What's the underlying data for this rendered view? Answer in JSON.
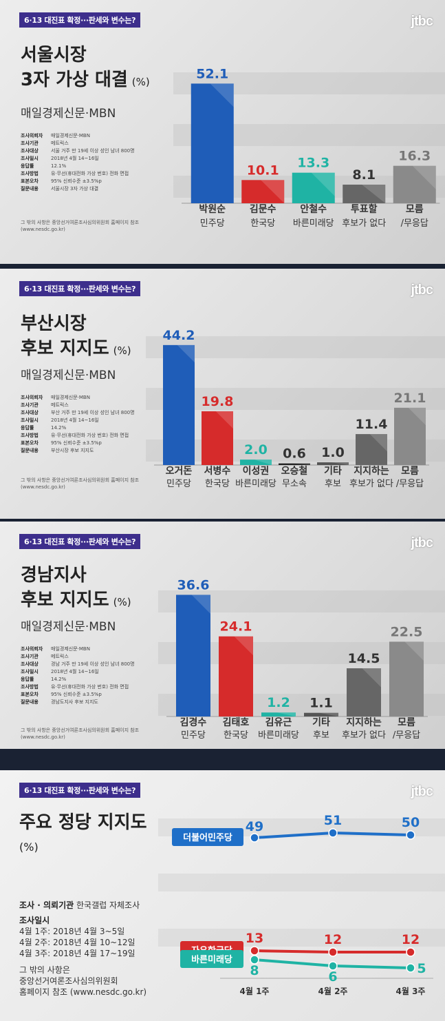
{
  "panels": [
    {
      "tag": "6·13 대진표 확정···판세와 변수는?",
      "logo": "jtbc",
      "title_line1": "서울시장",
      "title_line2": "3자 가상 대결",
      "unit": "(%)",
      "source": "매일경제신문·MBN",
      "meta": [
        {
          "k": "조사의뢰자",
          "v": "매일경제신문·MBN"
        },
        {
          "k": "조사기관",
          "v": "메트릭스"
        },
        {
          "k": "조사대상",
          "v": "서울 거주 만 19세 이상 성인 남녀 800명"
        },
        {
          "k": "조사일시",
          "v": "2018년 4월 14~16일"
        },
        {
          "k": "응답률",
          "v": "12.1%"
        },
        {
          "k": "조사방법",
          "v": "유·무선(휴대전화 가상 번호) 전화 면접"
        },
        {
          "k": "표본오차",
          "v": "95% 신뢰수준 ±3.5%p"
        },
        {
          "k": "질문내용",
          "v": "서울시장 3자 가상 대결"
        }
      ],
      "footnote": "그 밖의 사항은 중앙선거여론조사심의위원회 홈페이지 참조 (www.nesdc.go.kr)"
    },
    {
      "tag": "6·13 대진표 확정···판세와 변수는?",
      "logo": "jtbc",
      "title_line1": "부산시장",
      "title_line2": "후보 지지도",
      "unit": "(%)",
      "source": "매일경제신문·MBN",
      "meta": [
        {
          "k": "조사의뢰자",
          "v": "매일경제신문·MBN"
        },
        {
          "k": "조사기관",
          "v": "메트릭스"
        },
        {
          "k": "조사대상",
          "v": "부산 거주 만 19세 이상 성인 남녀 800명"
        },
        {
          "k": "조사일시",
          "v": "2018년 4월 14~16일"
        },
        {
          "k": "응답률",
          "v": "14.2%"
        },
        {
          "k": "조사방법",
          "v": "유·무선(휴대전화 가상 번호) 전화 면접"
        },
        {
          "k": "표본오차",
          "v": "95% 신뢰수준 ±3.5%p"
        },
        {
          "k": "질문내용",
          "v": "부산시장 후보 지지도"
        }
      ],
      "footnote": "그 밖의 사항은 중앙선거여론조사심의위원회 홈페이지 참조 (www.nesdc.go.kr)"
    },
    {
      "tag": "6·13 대진표 확정···판세와 변수는?",
      "logo": "jtbc",
      "title_line1": "경남지사",
      "title_line2": "후보 지지도",
      "unit": "(%)",
      "source": "매일경제신문·MBN",
      "meta": [
        {
          "k": "조사의뢰자",
          "v": "매일경제신문·MBN"
        },
        {
          "k": "조사기관",
          "v": "메트릭스"
        },
        {
          "k": "조사대상",
          "v": "경남 거주 만 19세 이상 성인 남녀 800명"
        },
        {
          "k": "조사일시",
          "v": "2018년 4월 14~16일"
        },
        {
          "k": "응답률",
          "v": "14.2%"
        },
        {
          "k": "조사방법",
          "v": "유·무선(휴대전화 가상 번호) 전화 면접"
        },
        {
          "k": "표본오차",
          "v": "95% 신뢰수준 ±3.5%p"
        },
        {
          "k": "질문내용",
          "v": "경남도지사 후보 지지도"
        }
      ],
      "footnote": "그 밖의 사항은 중앙선거여론조사심의위원회 홈페이지 참조 (www.nesdc.go.kr)"
    },
    {
      "tag": "6·13 대진표 확정···판세와 변수는?",
      "logo": "jtbc",
      "title_line1": "주요 정당 지지도",
      "unit": "(%)",
      "agency_label": "조사 · 의뢰기관",
      "agency_value": "한국갤럽 자체조사",
      "dates_label": "조사일시",
      "dates": [
        "4월 1주: 2018년 4월 3~5일",
        "4월 2주: 2018년 4월 10~12일",
        "4월 3주: 2018년 4월 17~19일"
      ],
      "footnote": [
        "그 밖의 사항은",
        "중앙선거여론조사심의위원회",
        "홈페이지 참조 (www.nesdc.go.kr)"
      ]
    }
  ],
  "chart_data": [
    {
      "type": "bar",
      "unit": "%",
      "categories": [
        {
          "line1": "박원순",
          "line2": "민주당"
        },
        {
          "line1": "김문수",
          "line2": "한국당"
        },
        {
          "line1": "안철수",
          "line2": "바른미래당"
        },
        {
          "line1": "투표할",
          "line2": "후보가 없다"
        },
        {
          "line1": "모름",
          "line2": "/무응답"
        }
      ],
      "values": [
        52.1,
        10.1,
        13.3,
        8.1,
        16.3
      ],
      "value_labels": [
        "52.1",
        "10.1",
        "13.3",
        "8.1",
        "16.3"
      ],
      "colors": [
        "#1f5db8",
        "#d62b2b",
        "#1fb3a4",
        "#666666",
        "#8a8a8a"
      ],
      "ylim": [
        0,
        60
      ]
    },
    {
      "type": "bar",
      "unit": "%",
      "categories": [
        {
          "line1": "오거돈",
          "line2": "민주당"
        },
        {
          "line1": "서병수",
          "line2": "한국당"
        },
        {
          "line1": "이성권",
          "line2": "바른미래당"
        },
        {
          "line1": "오승철",
          "line2": "무소속"
        },
        {
          "line1": "기타",
          "line2": "후보"
        },
        {
          "line1": "지지하는",
          "line2": "후보가 없다"
        },
        {
          "line1": "모름",
          "line2": "/무응답"
        }
      ],
      "values": [
        44.2,
        19.8,
        2.0,
        0.6,
        1.0,
        11.4,
        21.1
      ],
      "value_labels": [
        "44.2",
        "19.8",
        "2.0",
        "0.6",
        "1.0",
        "11.4",
        "21.1"
      ],
      "colors": [
        "#1f5db8",
        "#d62b2b",
        "#1fb3a4",
        "#222222",
        "#555555",
        "#666666",
        "#8a8a8a"
      ],
      "ylim": [
        0,
        50
      ]
    },
    {
      "type": "bar",
      "unit": "%",
      "categories": [
        {
          "line1": "김경수",
          "line2": "민주당"
        },
        {
          "line1": "김태호",
          "line2": "한국당"
        },
        {
          "line1": "김유근",
          "line2": "바른미래당"
        },
        {
          "line1": "기타",
          "line2": "후보"
        },
        {
          "line1": "지지하는",
          "line2": "후보가 없다"
        },
        {
          "line1": "모름",
          "line2": "/무응답"
        }
      ],
      "values": [
        36.6,
        24.1,
        1.2,
        1.1,
        14.5,
        22.5
      ],
      "value_labels": [
        "36.6",
        "24.1",
        "1.2",
        "1.1",
        "14.5",
        "22.5"
      ],
      "colors": [
        "#1f5db8",
        "#d62b2b",
        "#1fb3a4",
        "#555555",
        "#666666",
        "#8a8a8a"
      ],
      "ylim": [
        0,
        40
      ]
    },
    {
      "type": "line",
      "unit": "%",
      "x": [
        "4월 1주",
        "4월 2주",
        "4월 3주"
      ],
      "series": [
        {
          "name": "더불어민주당",
          "values": [
            49,
            51,
            50
          ],
          "color": "#1f6fc8"
        },
        {
          "name": "자유한국당",
          "values": [
            13,
            12,
            12
          ],
          "color": "#d62b2b"
        },
        {
          "name": "바른미래당",
          "values": [
            8,
            6,
            5
          ],
          "color": "#1fb3a4"
        }
      ]
    }
  ]
}
